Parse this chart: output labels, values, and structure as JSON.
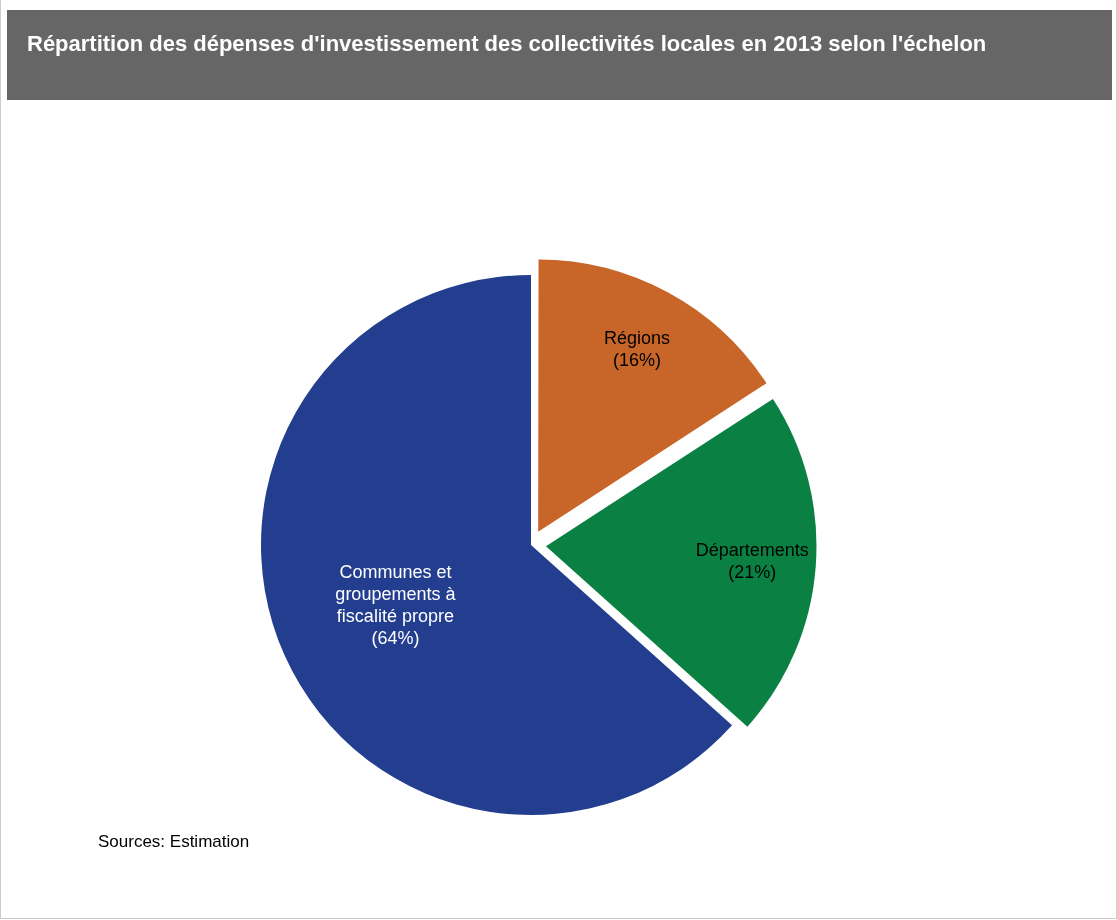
{
  "chart_data": {
    "type": "pie",
    "title": "Répartition des dépenses d'investissement  des collectivités locales en 2013 selon l'échelon",
    "categories": [
      "Régions",
      "Départements",
      "Communes et groupements à fiscalité propre"
    ],
    "values": [
      16,
      21,
      64
    ],
    "value_labels": [
      "(16%)",
      "(21%)",
      "(64%)"
    ],
    "colors": [
      "#c8662a",
      "#0b8043",
      "#233e8e"
    ],
    "legend": false,
    "annotations": [
      "Sources: Estimation"
    ]
  }
}
